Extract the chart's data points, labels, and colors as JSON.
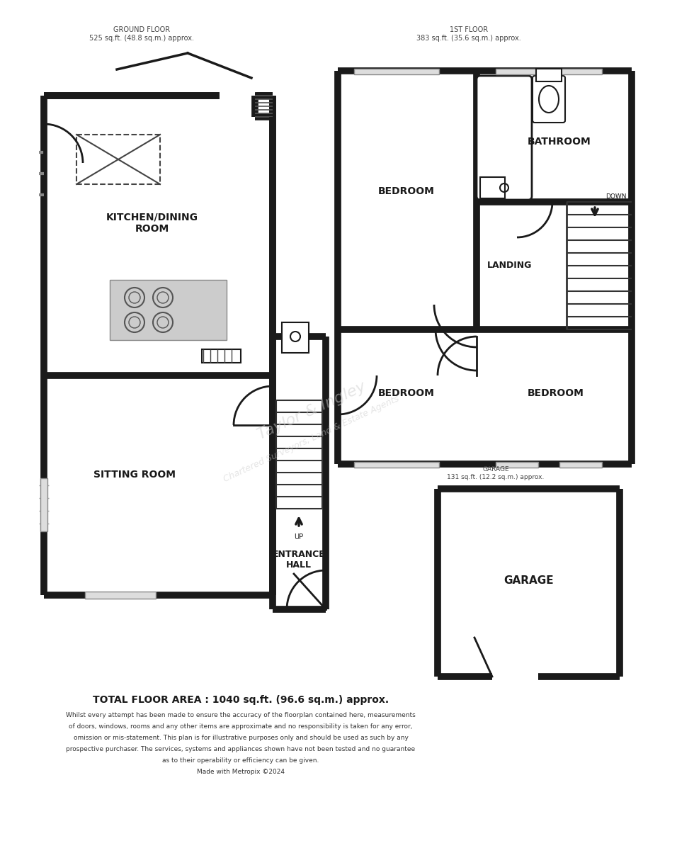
{
  "bg_color": "#ffffff",
  "wall_color": "#1a1a1a",
  "wall_lw": 7,
  "ground_floor_label": "GROUND FLOOR\n525 sq.ft. (48.8 sq.m.) approx.",
  "first_floor_label": "1ST FLOOR\n383 sq.ft. (35.6 sq.m.) approx.",
  "garage_label": "GARAGE\n131 sq.ft. (12.2 sq.m.) approx.",
  "total_area": "TOTAL FLOOR AREA : 1040 sq.ft. (96.6 sq.m.) approx.",
  "disclaimer_line1": "Whilst every attempt has been made to ensure the accuracy of the floorplan contained here, measurements",
  "disclaimer_line2": "of doors, windows, rooms and any other items are approximate and no responsibility is taken for any error,",
  "disclaimer_line3": "omission or mis-statement. This plan is for illustrative purposes only and should be used as such by any",
  "disclaimer_line4": "prospective purchaser. The services, systems and appliances shown have not been tested and no guarantee",
  "disclaimer_line5": "as to their operability or efficiency can be given.",
  "disclaimer_line6": "Made with Metropix ©2024",
  "watermark_line1": "Taylor & Ingley",
  "watermark_line2": "Chartered Surveyors, Land & Estate Agents"
}
